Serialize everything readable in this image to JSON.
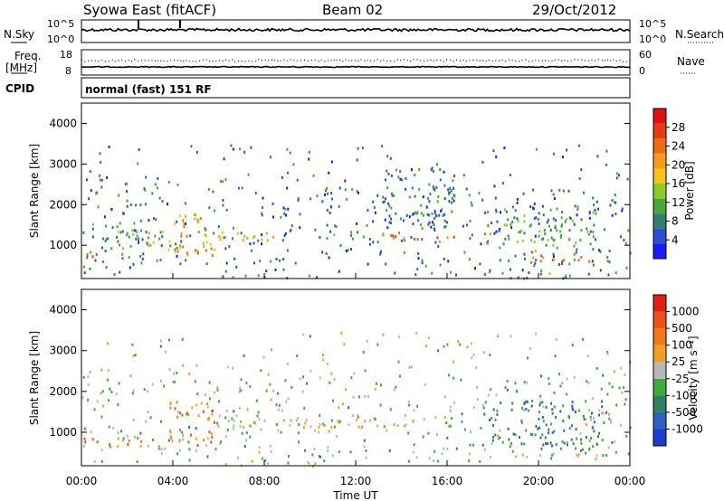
{
  "header": {
    "station": "Syowa East (fitACF)",
    "beam": "Beam 02",
    "date": "29/Oct/2012"
  },
  "top_panels": {
    "nsky_label": "N.Sky",
    "nsky_ticks": [
      "10^5",
      "10^0"
    ],
    "nsearch_label": "N.Search",
    "nsearch_ticks": [
      "10^5",
      "10^0"
    ],
    "freq_label": "Freq.",
    "freq_unit": "[MHz]",
    "freq_ticks": [
      "18",
      "8"
    ],
    "nave_label": "Nave",
    "nave_ticks": [
      "60",
      "0"
    ],
    "cpid_label": "CPID",
    "cpid_text": "normal (fast) 151 RF"
  },
  "chart_data": [
    {
      "type": "heatmap",
      "name": "power",
      "ylabel": "Slant Range [km]",
      "ylim": [
        180,
        4500
      ],
      "yticks": [
        1000,
        2000,
        3000,
        4000
      ],
      "xlim": [
        0,
        24
      ],
      "colorbar": {
        "label": "Power [dB]",
        "ticks": [
          "4",
          "8",
          "12",
          "16",
          "20",
          "24",
          "28"
        ],
        "colors": [
          "#1a1aff",
          "#2a4fd0",
          "#2f7f6a",
          "#45a83c",
          "#8ccc2a",
          "#f5c518",
          "#f59a1a",
          "#f06a14",
          "#e83a10",
          "#e01010"
        ]
      },
      "features": [
        {
          "t0": 0.0,
          "t1": 1.2,
          "r0": 600,
          "r1": 900,
          "level": 0.85
        },
        {
          "t0": 0.0,
          "t1": 3.0,
          "r0": 1100,
          "r1": 1600,
          "level": 0.3
        },
        {
          "t0": 1.5,
          "t1": 4.5,
          "r0": 900,
          "r1": 1400,
          "level": 0.4
        },
        {
          "t0": 4.0,
          "t1": 5.8,
          "r0": 700,
          "r1": 1800,
          "level": 0.65
        },
        {
          "t0": 5.2,
          "t1": 10.0,
          "r0": 1150,
          "r1": 1350,
          "level": 0.55
        },
        {
          "t0": 6.0,
          "t1": 10.5,
          "r0": 200,
          "r1": 300,
          "level": 0.2
        },
        {
          "t0": 10.5,
          "t1": 13.5,
          "r0": 1150,
          "r1": 1300,
          "level": 0.3
        },
        {
          "t0": 13.5,
          "t1": 16.5,
          "r0": 1100,
          "r1": 1350,
          "level": 0.75
        },
        {
          "t0": 13.0,
          "t1": 16.3,
          "r0": 1400,
          "r1": 2900,
          "level": 0.2
        },
        {
          "t0": 17.5,
          "t1": 22.5,
          "r0": 1000,
          "r1": 2000,
          "level": 0.3
        },
        {
          "t0": 19.5,
          "t1": 22.5,
          "r0": 600,
          "r1": 900,
          "level": 0.85
        },
        {
          "t0": 18.5,
          "t1": 22.5,
          "r0": 200,
          "r1": 350,
          "level": 0.25
        }
      ]
    },
    {
      "type": "heatmap",
      "name": "velocity",
      "ylabel": "Slant Range [km]",
      "ylim": [
        180,
        4500
      ],
      "yticks": [
        1000,
        2000,
        3000,
        4000
      ],
      "xlim": [
        0,
        24
      ],
      "xlabel": "Time UT",
      "xticks": [
        "00:00",
        "04:00",
        "08:00",
        "12:00",
        "16:00",
        "20:00",
        "00:00"
      ],
      "colorbar": {
        "label": "Velocity [m s⁻¹]",
        "ticks": [
          "1000",
          "500",
          "100",
          "25",
          "-25",
          "-100",
          "-500",
          "-1000"
        ],
        "colors": [
          "#1e3cd0",
          "#2f5fc0",
          "#2f8060",
          "#3caa3c",
          "#b8b8b8",
          "#f0a020",
          "#f07818",
          "#f05014",
          "#e02010"
        ]
      },
      "features": [
        {
          "t0": 0.0,
          "t1": 3.5,
          "r0": 600,
          "r1": 900,
          "level": 0.7
        },
        {
          "t0": 3.8,
          "t1": 5.8,
          "r0": 700,
          "r1": 1800,
          "level": 0.75
        },
        {
          "t0": 5.8,
          "t1": 16.5,
          "r0": 1150,
          "r1": 1350,
          "level": 0.5
        },
        {
          "t0": 6.0,
          "t1": 10.5,
          "r0": 200,
          "r1": 300,
          "level": 0.5
        },
        {
          "t0": 17.5,
          "t1": 23.0,
          "r0": 700,
          "r1": 1800,
          "level": 0.25
        },
        {
          "t0": 20.0,
          "t1": 23.0,
          "r0": 600,
          "r1": 800,
          "level": 0.2
        }
      ]
    }
  ]
}
